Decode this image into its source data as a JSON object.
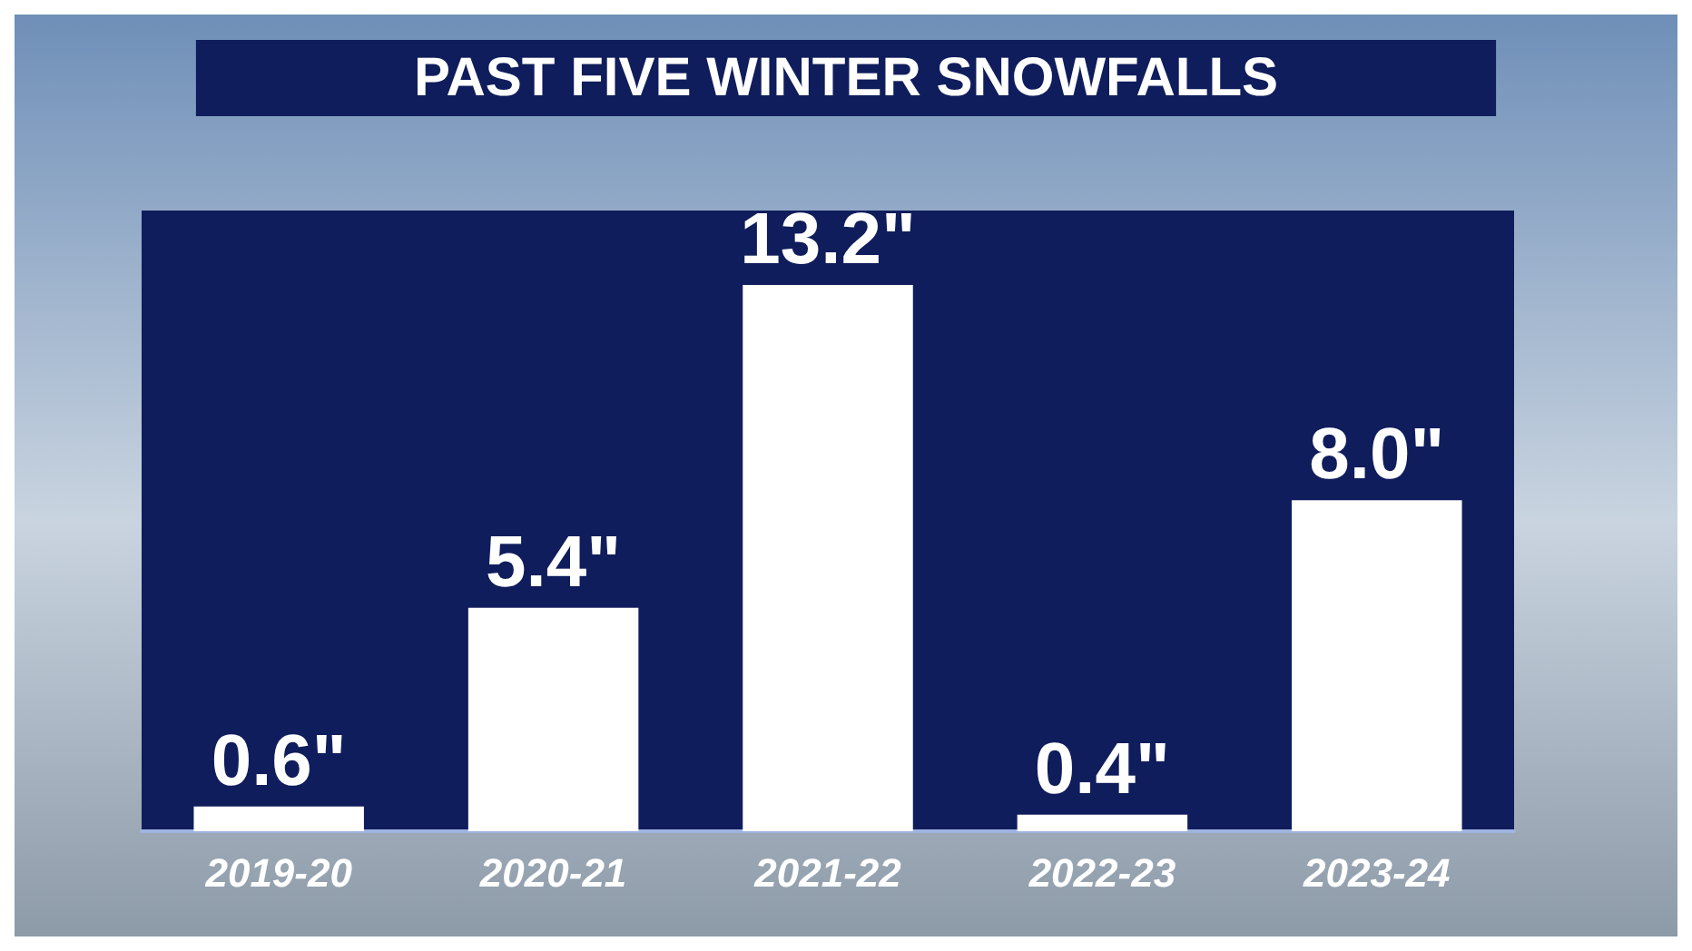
{
  "chart_data": {
    "type": "bar",
    "title": "PAST FIVE WINTER SNOWFALLS",
    "categories": [
      "2019-20",
      "2020-21",
      "2021-22",
      "2022-23",
      "2023-24"
    ],
    "values": [
      0.6,
      5.4,
      13.2,
      0.4,
      8.0
    ],
    "value_labels": [
      "0.6\"",
      "5.4\"",
      "13.2\"",
      "0.4\"",
      "8.0\""
    ],
    "color": "#ffffff"
  }
}
